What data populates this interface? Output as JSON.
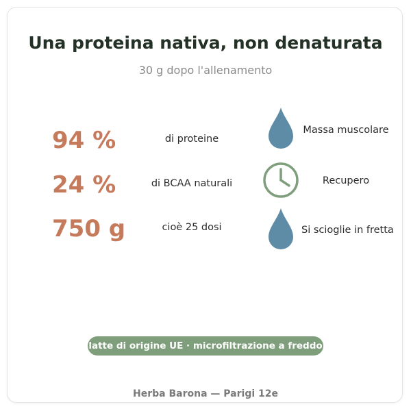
{
  "header": {
    "title": "Una proteina nativa, non denaturata",
    "subtitle": "30 g dopo l'allenamento"
  },
  "stats": [
    {
      "value": "94 %",
      "label": "di proteine"
    },
    {
      "value": "24 %",
      "label": "di BCAA naturali"
    },
    {
      "value": "750 g",
      "label": "cioè 25 dosi"
    }
  ],
  "benefits": [
    {
      "icon": "droplet-icon",
      "label": "Massa muscolare"
    },
    {
      "icon": "clock-icon",
      "label": "Recupero"
    },
    {
      "icon": "droplet-icon",
      "label": "Si scioglie in fretta"
    }
  ],
  "badge": {
    "text": "latte di origine UE · microfiltrazione a freddo"
  },
  "footer": {
    "text": "Herba Barona — Parigi 12e"
  },
  "colors": {
    "accent": "#c57a5c",
    "droplet": "#5e8ba5",
    "clock": "#7f9f7c",
    "badge_bg": "#7f9f7c",
    "title": "#243126"
  }
}
